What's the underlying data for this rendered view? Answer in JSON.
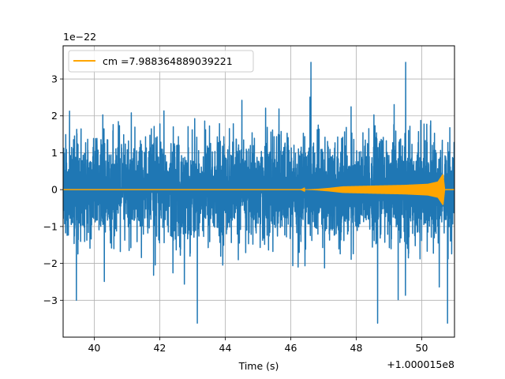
{
  "chart_data": {
    "type": "line",
    "title": "",
    "xlabel": "Time (s)",
    "ylabel": "",
    "x_offset_label": "+1.000015e8",
    "y_scale_label": "1e−22",
    "xlim": [
      39.05,
      51.0
    ],
    "ylim": [
      -4.0,
      3.9
    ],
    "x_ticks": [
      40,
      42,
      44,
      46,
      48,
      50
    ],
    "x_tick_labels": [
      "40",
      "42",
      "44",
      "46",
      "48",
      "50"
    ],
    "y_ticks": [
      -3,
      -2,
      -1,
      0,
      1,
      2,
      3
    ],
    "y_tick_labels": [
      "−3",
      "−2",
      "−1",
      "0",
      "1",
      "2",
      "3"
    ],
    "grid": true,
    "legend": {
      "placement": "upper-left",
      "entries": [
        "cm =7.988364889039221"
      ]
    },
    "series": [
      {
        "kind": "noise",
        "color": "#1f77b4",
        "envelope_approx": {
          "typical_band": [
            -1.9,
            1.9
          ],
          "peak_max": 3.45,
          "peak_min": -3.62
        }
      },
      {
        "name": "cm =7.988364889039221",
        "kind": "chirp",
        "color": "#ffa500",
        "x": [
          39.05,
          46.3,
          46.8,
          47.2,
          47.6,
          48.5,
          49.5,
          50.2,
          50.5,
          50.65,
          50.7,
          51.0
        ],
        "amplitude": [
          0.0,
          0.0,
          0.02,
          0.05,
          0.09,
          0.11,
          0.13,
          0.16,
          0.22,
          0.42,
          0.0,
          0.0
        ]
      }
    ]
  }
}
